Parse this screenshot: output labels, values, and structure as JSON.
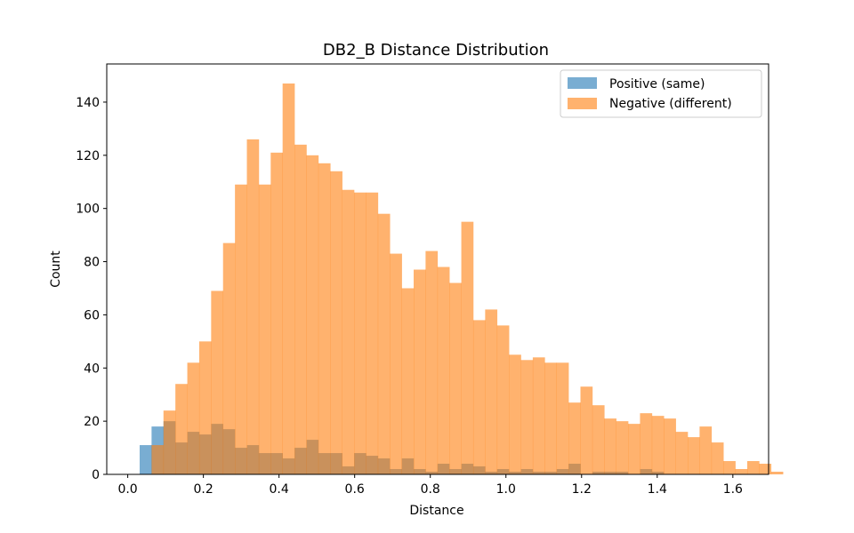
{
  "chart_data": {
    "type": "histogram",
    "title": "DB2_B Distance Distribution",
    "xlabel": "Distance",
    "ylabel": "Count",
    "xlim": [
      -0.0555,
      1.6945
    ],
    "ylim": [
      0,
      154.35
    ],
    "x_ticks": [
      0.0,
      0.2,
      0.4,
      0.6,
      0.8,
      1.0,
      1.2,
      1.4,
      1.6
    ],
    "x_tick_labels": [
      "0.0",
      "0.2",
      "0.4",
      "0.6",
      "0.8",
      "1.0",
      "1.2",
      "1.4",
      "1.6"
    ],
    "y_ticks": [
      0,
      20,
      40,
      60,
      80,
      100,
      120,
      140
    ],
    "y_tick_labels": [
      "0",
      "20",
      "40",
      "60",
      "80",
      "100",
      "120",
      "140"
    ],
    "legend_position": "upper right",
    "bin_start": 0.0315,
    "bin_width": 0.0315,
    "series": [
      {
        "name": "Positive (same)",
        "color": "#1f77b4",
        "opacity": 0.6,
        "values": [
          11,
          18,
          20,
          12,
          16,
          15,
          19,
          17,
          10,
          11,
          8,
          8,
          6,
          10,
          13,
          8,
          8,
          3,
          8,
          7,
          6,
          2,
          6,
          2,
          1,
          4,
          2,
          4,
          3,
          1,
          2,
          1,
          2,
          1,
          1,
          2,
          4,
          0,
          1,
          1,
          1,
          0,
          2,
          1,
          0,
          0,
          0,
          0,
          0,
          0,
          0,
          0
        ]
      },
      {
        "name": "Negative (different)",
        "color": "#ff7f0e",
        "opacity": 0.6,
        "values": [
          0,
          11,
          24,
          34,
          42,
          50,
          69,
          87,
          109,
          126,
          109,
          121,
          147,
          124,
          120,
          117,
          114,
          107,
          106,
          106,
          98,
          83,
          70,
          77,
          84,
          78,
          72,
          95,
          58,
          62,
          56,
          45,
          43,
          44,
          42,
          42,
          27,
          33,
          26,
          21,
          20,
          19,
          23,
          22,
          21,
          16,
          14,
          18,
          12,
          5,
          2,
          5,
          4,
          1
        ]
      }
    ]
  }
}
